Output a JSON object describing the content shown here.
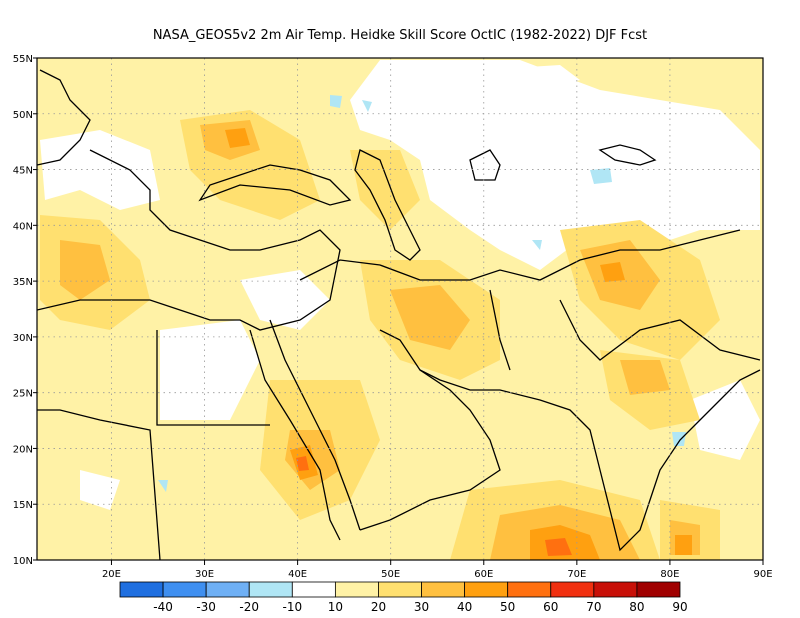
{
  "title": "NASA_GEOS5v2  2m Air Temp. Heidke Skill Score OctIC (1982-2022) DJF Fcst",
  "map": {
    "lon_range": [
      12,
      90
    ],
    "lat_range": [
      10,
      55
    ],
    "lon_ticks": [
      "20E",
      "30E",
      "40E",
      "50E",
      "60E",
      "70E",
      "80E",
      "90E"
    ],
    "lat_ticks": [
      "55N",
      "50N",
      "45N",
      "40N",
      "35N",
      "30N",
      "25N",
      "20N",
      "15N",
      "10N"
    ],
    "grid": true
  },
  "colorbar": {
    "labels": [
      "-40",
      "-30",
      "-20",
      "-10",
      "10",
      "20",
      "30",
      "40",
      "50",
      "60",
      "70",
      "80",
      "90"
    ],
    "colors": [
      "#1f6fe0",
      "#3f8ff0",
      "#6fb0f5",
      "#b0e6f5",
      "#ffffff",
      "#fff2a6",
      "#ffe070",
      "#ffc040",
      "#ffa010",
      "#ff7010",
      "#f03010",
      "#c81008",
      "#a00000"
    ]
  }
}
